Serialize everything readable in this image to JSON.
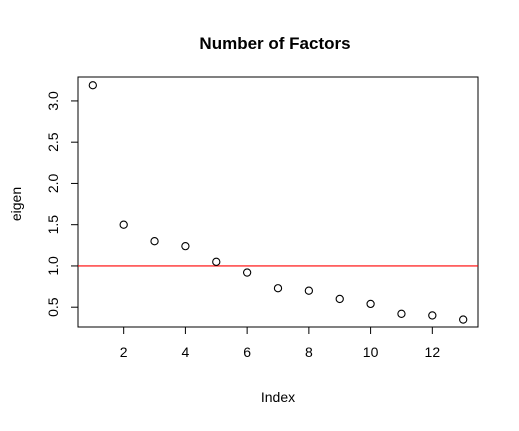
{
  "chart_data": {
    "type": "scatter",
    "title": "Number of Factors",
    "xlabel": "Index",
    "ylabel": "eigen",
    "xlim": [
      0.52,
      13.48
    ],
    "ylim": [
      0.26,
      3.29
    ],
    "x_ticks": [
      2,
      4,
      6,
      8,
      10,
      12
    ],
    "y_ticks": [
      0.5,
      1.0,
      1.5,
      2.0,
      2.5,
      3.0
    ],
    "x_tick_labels": [
      "2",
      "4",
      "6",
      "8",
      "10",
      "12"
    ],
    "y_tick_labels": [
      "0.5",
      "1.0",
      "1.5",
      "2.0",
      "2.5",
      "3.0"
    ],
    "points": [
      {
        "x": 1,
        "y": 3.19
      },
      {
        "x": 2,
        "y": 1.5
      },
      {
        "x": 3,
        "y": 1.3
      },
      {
        "x": 4,
        "y": 1.24
      },
      {
        "x": 5,
        "y": 1.05
      },
      {
        "x": 6,
        "y": 0.92
      },
      {
        "x": 7,
        "y": 0.73
      },
      {
        "x": 8,
        "y": 0.7
      },
      {
        "x": 9,
        "y": 0.6
      },
      {
        "x": 10,
        "y": 0.54
      },
      {
        "x": 11,
        "y": 0.42
      },
      {
        "x": 12,
        "y": 0.4
      },
      {
        "x": 13,
        "y": 0.35
      }
    ],
    "reference_line": {
      "orientation": "horizontal",
      "y": 1.0,
      "color": "#ff0000"
    },
    "marker": {
      "shape": "open-circle",
      "color": "#000000"
    },
    "grid": false,
    "legend": "none"
  }
}
